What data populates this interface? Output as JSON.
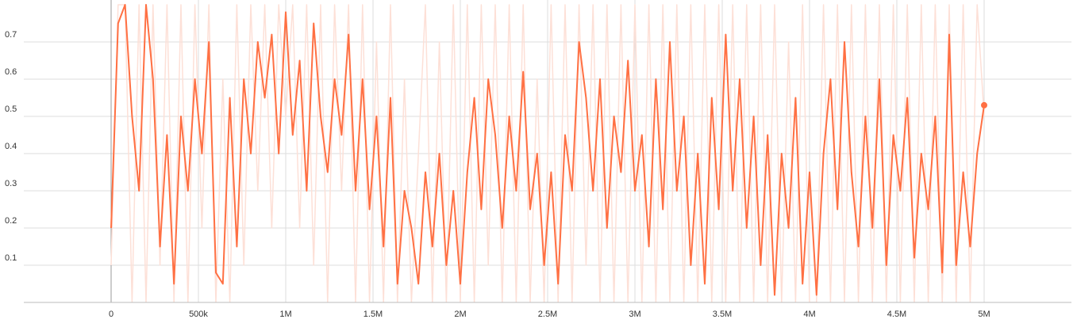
{
  "chart_data": {
    "type": "line",
    "x": [
      0,
      40000,
      80000,
      120000,
      160000,
      200000,
      240000,
      280000,
      320000,
      360000,
      400000,
      440000,
      480000,
      520000,
      560000,
      600000,
      640000,
      680000,
      720000,
      760000,
      800000,
      840000,
      880000,
      920000,
      960000,
      1000000,
      1040000,
      1080000,
      1120000,
      1160000,
      1200000,
      1240000,
      1280000,
      1320000,
      1360000,
      1400000,
      1440000,
      1480000,
      1520000,
      1560000,
      1600000,
      1640000,
      1680000,
      1720000,
      1760000,
      1800000,
      1840000,
      1880000,
      1920000,
      1960000,
      2000000,
      2040000,
      2080000,
      2120000,
      2160000,
      2200000,
      2240000,
      2280000,
      2320000,
      2360000,
      2400000,
      2440000,
      2480000,
      2520000,
      2560000,
      2600000,
      2640000,
      2680000,
      2720000,
      2760000,
      2800000,
      2840000,
      2880000,
      2920000,
      2960000,
      3000000,
      3040000,
      3080000,
      3120000,
      3160000,
      3200000,
      3240000,
      3280000,
      3320000,
      3360000,
      3400000,
      3440000,
      3480000,
      3520000,
      3560000,
      3600000,
      3640000,
      3680000,
      3720000,
      3760000,
      3800000,
      3840000,
      3880000,
      3920000,
      3960000,
      4000000,
      4040000,
      4080000,
      4120000,
      4160000,
      4200000,
      4240000,
      4280000,
      4320000,
      4360000,
      4400000,
      4440000,
      4480000,
      4520000,
      4560000,
      4600000,
      4640000,
      4680000,
      4720000,
      4760000,
      4800000,
      4840000,
      4880000,
      4920000,
      4960000,
      5000000
    ],
    "series": [
      {
        "color": "#fde0d7",
        "values": [
          0.1,
          0.8,
          0.8,
          0,
          0.8,
          0,
          0.8,
          0.1,
          0.8,
          0,
          0.8,
          0,
          0.8,
          0.2,
          0.8,
          0,
          0.6,
          0,
          0.8,
          0.1,
          0.8,
          0.3,
          0.8,
          0.2,
          0.8,
          0.5,
          0.8,
          0.2,
          0.8,
          0.1,
          0.8,
          0,
          0.8,
          0.3,
          0.8,
          0,
          0.8,
          0,
          0.7,
          0,
          0.8,
          0,
          0.6,
          0,
          0.4,
          0.8,
          0,
          0.7,
          0,
          0.8,
          0,
          0.8,
          0,
          0.8,
          0.1,
          0.8,
          0,
          0.8,
          0,
          0.8,
          0,
          0.6,
          0,
          0.8,
          0,
          0.8,
          0,
          0.8,
          0.1,
          0.8,
          0,
          0.8,
          0,
          0.8,
          0,
          0.8,
          0,
          0.8,
          0,
          0.8,
          0,
          0.8,
          0,
          0.8,
          0,
          0.8,
          0,
          0.8,
          0,
          0.8,
          0,
          0.8,
          0,
          0.8,
          0,
          0.8,
          0,
          0.7,
          0,
          0.8,
          0,
          0,
          0.8,
          0,
          0.8,
          0,
          0.8,
          0,
          0.8,
          0,
          0.8,
          0,
          0.8,
          0,
          0.8,
          0,
          0.8,
          0,
          0.8,
          0,
          0.8,
          0,
          0.8,
          0,
          0.8,
          0.5
        ]
      },
      {
        "color": "#ff7043",
        "values": [
          0.2,
          0.75,
          0.8,
          0.5,
          0.3,
          0.8,
          0.6,
          0.15,
          0.45,
          0.05,
          0.5,
          0.3,
          0.6,
          0.4,
          0.7,
          0.08,
          0.05,
          0.55,
          0.15,
          0.6,
          0.4,
          0.7,
          0.55,
          0.72,
          0.4,
          0.78,
          0.45,
          0.65,
          0.3,
          0.75,
          0.5,
          0.35,
          0.6,
          0.45,
          0.72,
          0.3,
          0.6,
          0.25,
          0.5,
          0.15,
          0.55,
          0.05,
          0.3,
          0.2,
          0.05,
          0.35,
          0.15,
          0.4,
          0.1,
          0.3,
          0.05,
          0.35,
          0.55,
          0.25,
          0.6,
          0.45,
          0.2,
          0.5,
          0.3,
          0.62,
          0.25,
          0.4,
          0.1,
          0.35,
          0.05,
          0.45,
          0.3,
          0.7,
          0.55,
          0.3,
          0.6,
          0.2,
          0.5,
          0.35,
          0.65,
          0.3,
          0.45,
          0.15,
          0.6,
          0.25,
          0.7,
          0.3,
          0.5,
          0.1,
          0.4,
          0.05,
          0.55,
          0.25,
          0.72,
          0.3,
          0.6,
          0.2,
          0.5,
          0.1,
          0.45,
          0.02,
          0.4,
          0.2,
          0.55,
          0.05,
          0.35,
          0.02,
          0.4,
          0.6,
          0.25,
          0.7,
          0.35,
          0.15,
          0.5,
          0.2,
          0.6,
          0.1,
          0.45,
          0.3,
          0.55,
          0.12,
          0.4,
          0.25,
          0.5,
          0.08,
          0.72,
          0.1,
          0.35,
          0.15,
          0.4,
          0.53
        ]
      }
    ],
    "xlim": [
      -500000,
      5500000
    ],
    "ylim": [
      0,
      0.8
    ],
    "xticks": [
      0,
      {
        "value": 500000,
        "label": "500k"
      },
      {
        "value": 1000000,
        "label": "1M"
      },
      {
        "value": 1500000,
        "label": "1.5M"
      },
      {
        "value": 2000000,
        "label": "2M"
      },
      {
        "value": 2500000,
        "label": "2.5M"
      },
      {
        "value": 3000000,
        "label": "3M"
      },
      {
        "value": 3500000,
        "label": "3.5M"
      },
      {
        "value": 4000000,
        "label": "4M"
      },
      {
        "value": 4500000,
        "label": "4.5M"
      },
      {
        "value": 5000000,
        "label": "5M"
      }
    ],
    "yticks": [
      0.1,
      0.2,
      0.3,
      0.4,
      0.5,
      0.6,
      0.7
    ],
    "grid": true
  }
}
